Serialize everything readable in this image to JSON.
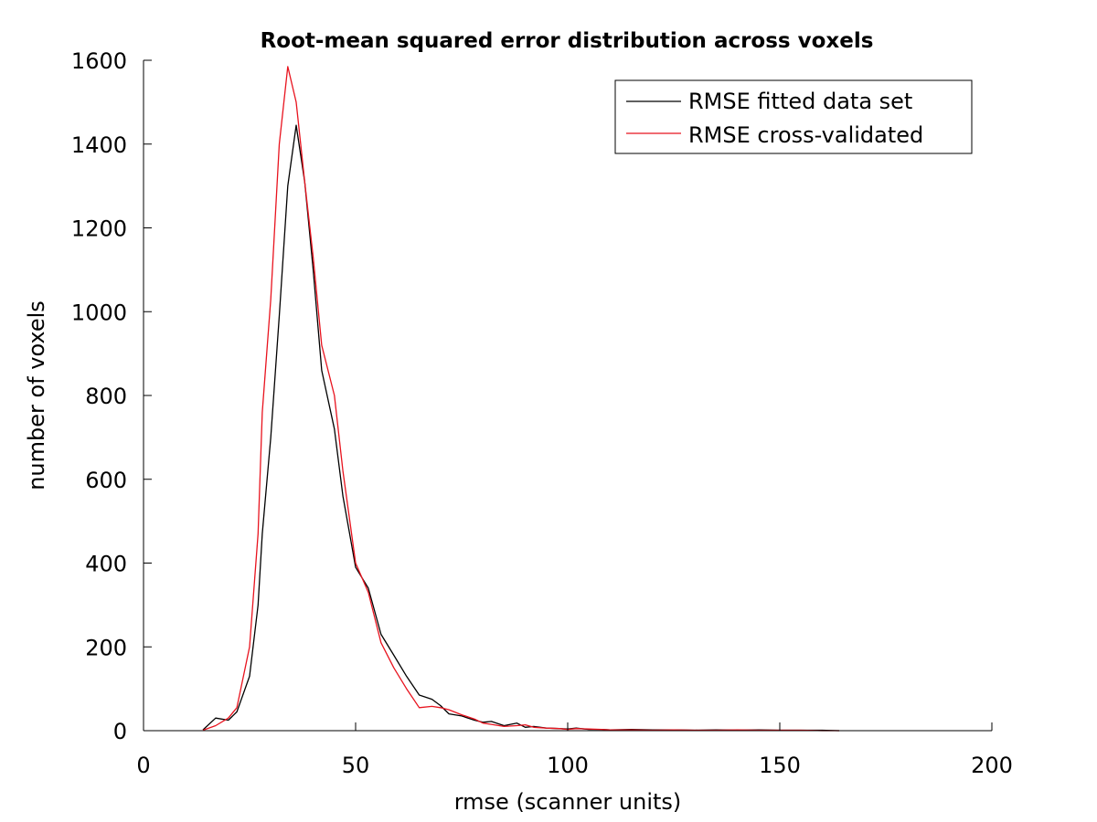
{
  "chart_data": {
    "type": "line",
    "title": "Root-mean squared error distribution across voxels",
    "xlabel": "rmse (scanner units)",
    "ylabel": "number of voxels",
    "xlim": [
      0,
      200
    ],
    "ylim": [
      0,
      1600
    ],
    "xticks": [
      "0",
      "50",
      "100",
      "150",
      "200"
    ],
    "yticks": [
      "0",
      "200",
      "400",
      "600",
      "800",
      "1000",
      "1200",
      "1400",
      "1600"
    ],
    "grid": false,
    "legend_position": "top-right",
    "series": [
      {
        "name": "RMSE fitted data set",
        "color": "#000000",
        "x": [
          14,
          17,
          20,
          22,
          25,
          27,
          28,
          30,
          32,
          34,
          36,
          38,
          40,
          42,
          45,
          47,
          50,
          53,
          56,
          59,
          62,
          65,
          68,
          70,
          72,
          75,
          78,
          80,
          82,
          85,
          88,
          90,
          92,
          95,
          98,
          100,
          102,
          105,
          108,
          110,
          115,
          120,
          125,
          130,
          135,
          140,
          145,
          150,
          155,
          160,
          164
        ],
        "values": [
          2,
          30,
          25,
          45,
          130,
          300,
          470,
          700,
          990,
          1300,
          1445,
          1310,
          1100,
          860,
          720,
          560,
          390,
          340,
          230,
          180,
          130,
          85,
          75,
          60,
          40,
          35,
          25,
          20,
          22,
          12,
          18,
          8,
          10,
          6,
          5,
          4,
          6,
          3,
          3,
          2,
          3,
          2,
          2,
          1,
          2,
          1,
          2,
          1,
          1,
          1,
          0
        ]
      },
      {
        "name": "RMSE cross-validated",
        "color": "#e8131e",
        "x": [
          14,
          17,
          20,
          22,
          25,
          27,
          28,
          30,
          32,
          34,
          36,
          38,
          40,
          42,
          45,
          47,
          50,
          53,
          56,
          59,
          62,
          65,
          68,
          70,
          72,
          75,
          78,
          80,
          82,
          85,
          88,
          90,
          92,
          95,
          98,
          100,
          102,
          105,
          108,
          110,
          115,
          120,
          125,
          130,
          135,
          140,
          145,
          150,
          155,
          160,
          164
        ],
        "values": [
          1,
          12,
          30,
          55,
          200,
          470,
          760,
          1030,
          1400,
          1585,
          1500,
          1310,
          1130,
          920,
          800,
          620,
          400,
          330,
          210,
          150,
          100,
          55,
          58,
          55,
          50,
          38,
          28,
          18,
          15,
          10,
          12,
          14,
          8,
          6,
          5,
          3,
          5,
          4,
          3,
          2,
          2,
          1,
          2,
          1,
          1,
          2,
          1,
          1,
          1,
          0,
          0
        ]
      }
    ]
  }
}
